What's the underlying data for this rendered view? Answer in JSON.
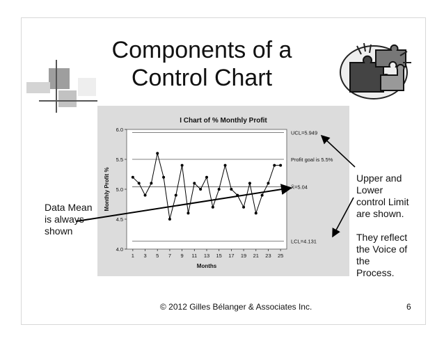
{
  "slide": {
    "title_line1": "Components of a",
    "title_line2": "Control Chart",
    "footer": "© 2012 Gilles Bélanger & Associates Inc.",
    "page_number": "6",
    "annotation_left": "Data Mean\nis always\nshown",
    "annotation_right": "Upper and\nLower\ncontrol Limit\nare shown.\n\nThey reflect\nthe Voice of\nthe\nProcess."
  },
  "chart_data": {
    "type": "line",
    "title": "I Chart of % Monthly Profit",
    "xlabel": "Months",
    "ylabel": "Monthly Profit %",
    "x": [
      1,
      2,
      3,
      4,
      5,
      6,
      7,
      8,
      9,
      10,
      11,
      12,
      13,
      14,
      15,
      16,
      17,
      18,
      19,
      20,
      21,
      22,
      23,
      24,
      25
    ],
    "values": [
      5.2,
      5.1,
      4.9,
      5.1,
      5.6,
      5.2,
      4.5,
      4.9,
      5.4,
      4.6,
      5.1,
      5.0,
      5.2,
      4.7,
      5.0,
      5.4,
      5.0,
      4.9,
      4.7,
      5.1,
      4.6,
      4.9,
      5.1,
      5.4,
      5.4
    ],
    "ylim": [
      4.0,
      6.0
    ],
    "xlim": [
      0,
      26
    ],
    "yticks": [
      "4.0",
      "4.5",
      "5.0",
      "5.5",
      "6.0"
    ],
    "xticks": [
      "1",
      "3",
      "5",
      "7",
      "9",
      "11",
      "13",
      "15",
      "17",
      "19",
      "21",
      "23",
      "25"
    ],
    "reference_lines": [
      {
        "value": 5.949,
        "label": "UCL=5.949"
      },
      {
        "value": 5.5,
        "label": "Profit goal is 5.5%"
      },
      {
        "value": 5.04,
        "label": "X̄=5.04"
      },
      {
        "value": 4.131,
        "label": "LCL=4.131"
      }
    ],
    "grid": false,
    "line_color": "#000000",
    "panel_color": "#dcdcdc"
  }
}
